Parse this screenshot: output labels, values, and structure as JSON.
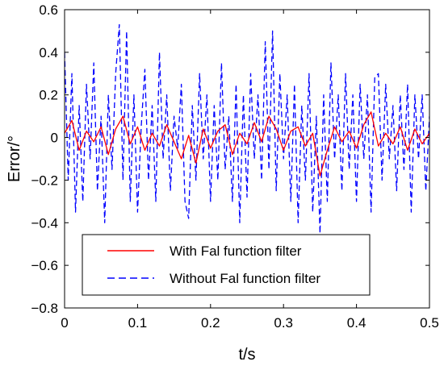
{
  "chart_data": {
    "type": "line",
    "xlabel": "t/s",
    "ylabel": "Error/°",
    "xlim": [
      0,
      0.5
    ],
    "ylim": [
      -0.8,
      0.6
    ],
    "xticks": [
      0,
      0.1,
      0.2,
      0.3,
      0.4,
      0.5
    ],
    "xtick_labels": [
      "0",
      "0.1",
      "0.2",
      "0.3",
      "0.4",
      "0.5"
    ],
    "yticks": [
      -0.8,
      -0.6,
      -0.4,
      -0.2,
      0,
      0.2,
      0.4,
      0.6
    ],
    "ytick_labels": [
      "−0.8",
      "−0.6",
      "−0.4",
      "−0.2",
      "0",
      "0.2",
      "0.4",
      "0.6"
    ],
    "grid": false,
    "legend_position": "lower-center",
    "series": [
      {
        "name": "With Fal function filter",
        "color": "#ff0000",
        "style": "solid",
        "x": [
          0,
          0.01,
          0.02,
          0.03,
          0.04,
          0.05,
          0.06,
          0.07,
          0.08,
          0.09,
          0.1,
          0.11,
          0.12,
          0.13,
          0.14,
          0.15,
          0.16,
          0.17,
          0.18,
          0.19,
          0.2,
          0.21,
          0.22,
          0.23,
          0.24,
          0.25,
          0.26,
          0.27,
          0.28,
          0.29,
          0.3,
          0.31,
          0.32,
          0.33,
          0.34,
          0.35,
          0.36,
          0.37,
          0.38,
          0.39,
          0.4,
          0.41,
          0.42,
          0.43,
          0.44,
          0.45,
          0.46,
          0.47,
          0.48,
          0.49,
          0.5
        ],
        "values": [
          0.02,
          0.08,
          -0.06,
          0.03,
          -0.02,
          0.05,
          -0.08,
          0.04,
          0.1,
          -0.03,
          0.05,
          -0.06,
          0.02,
          -0.04,
          0.06,
          -0.02,
          -0.1,
          0.01,
          -0.12,
          0.04,
          -0.05,
          0.03,
          0.06,
          -0.08,
          0.02,
          -0.03,
          0.07,
          -0.02,
          0.1,
          0.04,
          -0.06,
          0.03,
          0.05,
          -0.04,
          0.02,
          -0.18,
          -0.06,
          0.05,
          -0.02,
          0.03,
          -0.05,
          0.06,
          0.12,
          -0.04,
          0.02,
          -0.03,
          0.05,
          -0.06,
          0.04,
          -0.03,
          0.02
        ]
      },
      {
        "name": "Without Fal function filter",
        "color": "#0000ff",
        "style": "dashed",
        "x": [
          0,
          0.005,
          0.01,
          0.015,
          0.02,
          0.025,
          0.03,
          0.035,
          0.04,
          0.045,
          0.05,
          0.055,
          0.06,
          0.065,
          0.07,
          0.075,
          0.08,
          0.085,
          0.09,
          0.095,
          0.1,
          0.105,
          0.11,
          0.115,
          0.12,
          0.125,
          0.13,
          0.135,
          0.14,
          0.145,
          0.15,
          0.155,
          0.16,
          0.165,
          0.17,
          0.175,
          0.18,
          0.185,
          0.19,
          0.195,
          0.2,
          0.205,
          0.21,
          0.215,
          0.22,
          0.225,
          0.23,
          0.235,
          0.24,
          0.245,
          0.25,
          0.255,
          0.26,
          0.265,
          0.27,
          0.275,
          0.28,
          0.285,
          0.29,
          0.295,
          0.3,
          0.305,
          0.31,
          0.315,
          0.32,
          0.325,
          0.33,
          0.335,
          0.34,
          0.345,
          0.35,
          0.355,
          0.36,
          0.365,
          0.37,
          0.375,
          0.38,
          0.385,
          0.39,
          0.395,
          0.4,
          0.405,
          0.41,
          0.415,
          0.42,
          0.425,
          0.43,
          0.435,
          0.44,
          0.445,
          0.45,
          0.455,
          0.46,
          0.465,
          0.47,
          0.475,
          0.48,
          0.485,
          0.49,
          0.495,
          0.5
        ],
        "values": [
          0.4,
          -0.2,
          0.3,
          -0.35,
          0.15,
          -0.3,
          0.25,
          -0.1,
          0.35,
          -0.25,
          0.1,
          -0.4,
          0.2,
          -0.15,
          0.3,
          0.53,
          -0.2,
          0.5,
          -0.3,
          0.2,
          -0.35,
          0.05,
          0.32,
          -0.2,
          0.15,
          -0.3,
          0.4,
          -0.1,
          0.2,
          -0.25,
          0.1,
          -0.05,
          0.25,
          -0.3,
          -0.38,
          0.15,
          -0.2,
          0.3,
          -0.1,
          0.2,
          -0.3,
          0.15,
          -0.2,
          0.35,
          -0.15,
          0.1,
          -0.3,
          0.25,
          -0.4,
          0.2,
          -0.28,
          0.3,
          -0.1,
          0.2,
          -0.2,
          0.45,
          -0.15,
          0.5,
          -0.25,
          0.3,
          -0.1,
          0.2,
          -0.3,
          0.25,
          -0.4,
          0.15,
          -0.2,
          0.3,
          -0.35,
          0.1,
          -0.45,
          0.2,
          -0.3,
          0.35,
          -0.1,
          0.2,
          -0.25,
          0.3,
          -0.15,
          0.2,
          -0.3,
          0.25,
          -0.1,
          0.2,
          -0.35,
          0.28,
          0.3,
          -0.2,
          0.25,
          -0.1,
          0.15,
          -0.25,
          0.2,
          -0.15,
          0.25,
          -0.35,
          0.2,
          -0.1,
          0.2,
          -0.25,
          0.1
        ]
      }
    ]
  }
}
